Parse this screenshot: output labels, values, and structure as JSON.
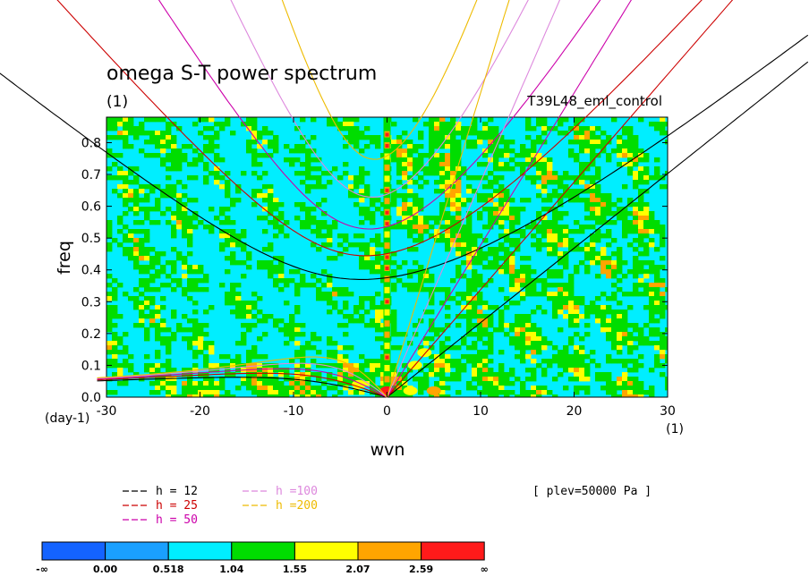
{
  "chart_data": {
    "type": "heatmap",
    "title": "omega S-T power spectrum",
    "subtitle": "(1)",
    "run_label": "T39L48_eml_control",
    "xlabel": "wvn",
    "ylabel": "freq",
    "x_unit": "(1)",
    "y_unit": "(day-1)",
    "xlim": [
      -30,
      30
    ],
    "ylim": [
      0,
      0.88
    ],
    "x_ticks": [
      -30,
      -20,
      -10,
      0,
      10,
      20,
      30
    ],
    "x_tick_labels": [
      "-30",
      "-20",
      "-10",
      "0",
      "10",
      "20",
      "30"
    ],
    "y_ticks": [
      0,
      0.1,
      0.2,
      0.3,
      0.4,
      0.5,
      0.6,
      0.7,
      0.8
    ],
    "y_tick_labels": [
      "0.0",
      "0.1",
      "0.2",
      "0.3",
      "0.4",
      "0.5",
      "0.6",
      "0.7",
      "0.8"
    ],
    "plev_label": "[ plev=50000 Pa ]",
    "dispersion_curves": [
      {
        "label": "h = 12",
        "h": 12,
        "color": "#000000"
      },
      {
        "label": "h = 25",
        "h": 25,
        "color": "#cc0000"
      },
      {
        "label": "h = 50",
        "h": 50,
        "color": "#cc00aa"
      },
      {
        "label": "h =100",
        "h": 100,
        "color": "#dd88dd"
      },
      {
        "label": "h =200",
        "h": 200,
        "color": "#eebb00"
      }
    ],
    "colorbar": {
      "levels": [
        "-∞",
        "0.00",
        "0.518",
        "1.04",
        "1.55",
        "2.07",
        "2.59",
        "∞"
      ],
      "colors": [
        "#1463ff",
        "#1aa0ff",
        "#00eeff",
        "#00dd00",
        "#ffff00",
        "#ffa500",
        "#ff1a1a"
      ]
    }
  }
}
